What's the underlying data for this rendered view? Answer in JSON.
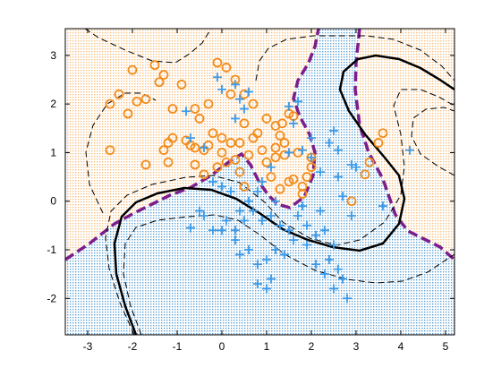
{
  "chart_data": {
    "type": "scatter",
    "title": "",
    "xlabel": "",
    "ylabel": "",
    "xlim": [
      -3.5,
      5.2
    ],
    "ylim": [
      -2.75,
      3.55
    ],
    "x_ticks": [
      -3,
      -2,
      -1,
      0,
      1,
      2,
      3,
      4,
      5
    ],
    "y_ticks": [
      -2,
      -1,
      0,
      1,
      2,
      3
    ],
    "x_tick_labels": [
      "-3",
      "-2",
      "-1",
      "0",
      "1",
      "2",
      "3",
      "4",
      "5"
    ],
    "y_tick_labels": [
      "-2",
      "-1",
      "0",
      "1",
      "2",
      "3"
    ],
    "grid": false,
    "legend": "none",
    "colors": {
      "class_circle": "#f28c1c",
      "class_plus": "#3d9be9",
      "region_circle_fill": "#f8e2c2",
      "region_plus_fill": "#cde6f2",
      "bayes_boundary": "#7b1e8a",
      "decision_boundary": "#000000",
      "margin": "#000000"
    },
    "series": [
      {
        "marker": "circle",
        "points": [
          [
            -2.5,
            2.0
          ],
          [
            -2.3,
            2.2
          ],
          [
            -2.1,
            1.8
          ],
          [
            -2.0,
            2.7
          ],
          [
            -1.9,
            2.05
          ],
          [
            -1.7,
            2.1
          ],
          [
            -1.5,
            2.8
          ],
          [
            -1.4,
            2.45
          ],
          [
            -1.3,
            2.6
          ],
          [
            -1.1,
            1.9
          ],
          [
            -0.9,
            2.4
          ],
          [
            -0.6,
            1.9
          ],
          [
            -0.3,
            2.0
          ],
          [
            -0.1,
            2.85
          ],
          [
            0.1,
            2.75
          ],
          [
            0.3,
            2.5
          ],
          [
            0.5,
            2.2
          ],
          [
            0.7,
            2.0
          ],
          [
            0.2,
            2.2
          ],
          [
            -0.5,
            1.7
          ],
          [
            -0.2,
            1.4
          ],
          [
            0.0,
            1.3
          ],
          [
            0.4,
            1.2
          ],
          [
            0.5,
            1.6
          ],
          [
            0.8,
            1.4
          ],
          [
            1.0,
            1.7
          ],
          [
            1.2,
            1.55
          ],
          [
            1.35,
            1.6
          ],
          [
            1.5,
            1.8
          ],
          [
            1.6,
            1.75
          ],
          [
            1.4,
            1.2
          ],
          [
            1.2,
            0.9
          ],
          [
            1.0,
            0.8
          ],
          [
            0.9,
            1.05
          ],
          [
            1.1,
            0.5
          ],
          [
            1.3,
            0.25
          ],
          [
            1.5,
            0.4
          ],
          [
            1.6,
            0.45
          ],
          [
            1.8,
            0.3
          ],
          [
            1.9,
            0.5
          ],
          [
            2.0,
            0.7
          ],
          [
            1.7,
            1.0
          ],
          [
            1.4,
            0.95
          ],
          [
            1.2,
            1.1
          ],
          [
            0.6,
            0.95
          ],
          [
            0.3,
            0.85
          ],
          [
            0.0,
            1.0
          ],
          [
            -0.3,
            1.15
          ],
          [
            -0.6,
            1.1
          ],
          [
            -0.8,
            1.25
          ],
          [
            -1.1,
            1.3
          ],
          [
            -1.2,
            1.2
          ],
          [
            -1.3,
            1.05
          ],
          [
            -1.2,
            0.8
          ],
          [
            -1.7,
            0.75
          ],
          [
            -2.5,
            1.05
          ],
          [
            -0.4,
            1.05
          ],
          [
            -0.1,
            0.7
          ],
          [
            0.1,
            0.8
          ],
          [
            0.4,
            0.6
          ],
          [
            0.5,
            0.3
          ],
          [
            -0.4,
            0.55
          ],
          [
            -0.6,
            0.75
          ],
          [
            -0.7,
            1.15
          ],
          [
            0.2,
            1.2
          ],
          [
            0.7,
            1.3
          ],
          [
            1.8,
            0.15
          ],
          [
            3.5,
            1.2
          ],
          [
            3.6,
            1.4
          ],
          [
            3.3,
            0.8
          ],
          [
            2.9,
            0.0
          ],
          [
            3.2,
            0.55
          ],
          [
            1.3,
            1.35
          ],
          [
            2.0,
            0.9
          ]
        ]
      },
      {
        "marker": "plus",
        "points": [
          [
            -0.8,
            1.85
          ],
          [
            -0.7,
            1.3
          ],
          [
            -0.4,
            1.1
          ],
          [
            -0.1,
            2.55
          ],
          [
            0.0,
            2.3
          ],
          [
            0.3,
            2.4
          ],
          [
            0.4,
            2.1
          ],
          [
            0.6,
            2.25
          ],
          [
            0.5,
            1.9
          ],
          [
            0.3,
            1.7
          ],
          [
            1.5,
            1.95
          ],
          [
            1.7,
            2.05
          ],
          [
            1.6,
            1.6
          ],
          [
            1.8,
            1.05
          ],
          [
            2.0,
            1.3
          ],
          [
            2.4,
            1.2
          ],
          [
            2.5,
            1.45
          ],
          [
            2.6,
            1.05
          ],
          [
            2.9,
            0.75
          ],
          [
            3.0,
            0.7
          ],
          [
            4.2,
            1.05
          ],
          [
            2.0,
            0.9
          ],
          [
            2.2,
            0.6
          ],
          [
            2.6,
            0.5
          ],
          [
            2.7,
            0.1
          ],
          [
            2.9,
            -0.3
          ],
          [
            1.5,
            1.0
          ],
          [
            1.1,
            0.7
          ],
          [
            0.9,
            0.4
          ],
          [
            0.8,
            0.2
          ],
          [
            0.6,
            0.0
          ],
          [
            0.4,
            -0.2
          ],
          [
            0.2,
            0.2
          ],
          [
            0.0,
            0.3
          ],
          [
            -0.2,
            0.4
          ],
          [
            0.1,
            -0.4
          ],
          [
            0.3,
            -0.6
          ],
          [
            0.5,
            -0.4
          ],
          [
            0.7,
            -0.2
          ],
          [
            0.9,
            -0.4
          ],
          [
            1.1,
            -0.3
          ],
          [
            1.3,
            -0.5
          ],
          [
            1.5,
            -0.6
          ],
          [
            1.7,
            -0.3
          ],
          [
            1.9,
            -0.5
          ],
          [
            2.1,
            -0.7
          ],
          [
            2.3,
            -0.6
          ],
          [
            2.5,
            -0.9
          ],
          [
            2.4,
            -1.2
          ],
          [
            2.6,
            -1.4
          ],
          [
            2.7,
            -1.6
          ],
          [
            2.5,
            -1.8
          ],
          [
            2.3,
            -1.5
          ],
          [
            2.1,
            -1.3
          ],
          [
            1.9,
            -0.9
          ],
          [
            1.6,
            -0.8
          ],
          [
            1.4,
            -1.1
          ],
          [
            1.2,
            -1.0
          ],
          [
            1.0,
            -1.2
          ],
          [
            0.8,
            -1.3
          ],
          [
            1.1,
            -1.6
          ],
          [
            0.6,
            -1.0
          ],
          [
            0.3,
            -0.8
          ],
          [
            0.0,
            -0.6
          ],
          [
            -0.2,
            -0.6
          ],
          [
            -0.4,
            -0.3
          ],
          [
            -0.7,
            -0.55
          ],
          [
            -0.5,
            -0.2
          ],
          [
            0.4,
            -1.1
          ],
          [
            1.0,
            -1.8
          ],
          [
            0.8,
            -1.7
          ],
          [
            2.8,
            -2.0
          ],
          [
            3.6,
            -0.1
          ],
          [
            2.2,
            -0.2
          ],
          [
            1.8,
            -0.1
          ],
          [
            1.2,
            0.0
          ]
        ]
      }
    ]
  }
}
